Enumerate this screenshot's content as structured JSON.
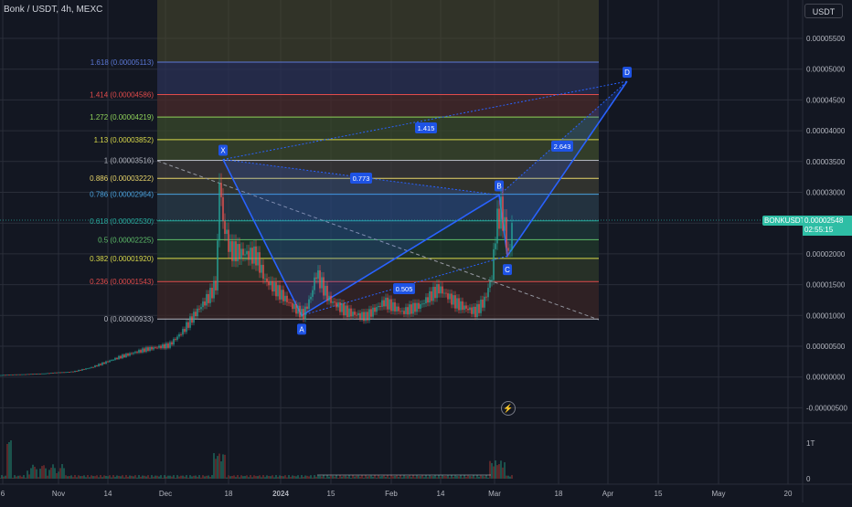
{
  "header": {
    "symbol_title": "Bonk / USDT, 4h, MEXC",
    "currency_button": "USDT"
  },
  "price_tag": {
    "symbol": "BONKUSDT",
    "price": "0.00002548",
    "countdown": "02:55:15"
  },
  "colors": {
    "background": "#131722",
    "up": "#26a69a",
    "down": "#ef5350",
    "pattern": "#2962ff",
    "grid": "#2a2e39"
  },
  "chart_data": {
    "type": "candlestick",
    "y_axis_ticks": [
      "0.00005500",
      "0.00005000",
      "0.00004500",
      "0.00004000",
      "0.00003500",
      "0.00003000",
      "0.00002500",
      "0.00002000",
      "0.00001500",
      "0.00001000",
      "0.00000500",
      "0.00000000",
      "-0.00000500"
    ],
    "volume_axis_ticks": [
      "1T",
      "0"
    ],
    "x_axis_ticks": [
      "6",
      "Nov",
      "14",
      "Dec",
      "18",
      "2024",
      "15",
      "Feb",
      "14",
      "Mar",
      "18",
      "Apr",
      "15",
      "May",
      "20"
    ],
    "price_series": [
      {
        "t": 0,
        "p": 2e-07
      },
      {
        "t": 40,
        "p": 4e-07
      },
      {
        "t": 80,
        "p": 8e-07
      },
      {
        "t": 100,
        "p": 1.5e-06
      },
      {
        "t": 130,
        "p": 3e-06
      },
      {
        "t": 160,
        "p": 4.2e-06
      },
      {
        "t": 185,
        "p": 5e-06
      },
      {
        "t": 200,
        "p": 7.5e-06
      },
      {
        "t": 215,
        "p": 1.1e-05
      },
      {
        "t": 230,
        "p": 1.4e-05
      },
      {
        "t": 237,
        "p": 1.6e-05
      },
      {
        "t": 240,
        "p": 3.4e-05
      },
      {
        "t": 244,
        "p": 2.6e-05
      },
      {
        "t": 252,
        "p": 2.1e-05
      },
      {
        "t": 265,
        "p": 2e-05
      },
      {
        "t": 280,
        "p": 1.9e-05
      },
      {
        "t": 290,
        "p": 1.5e-05
      },
      {
        "t": 305,
        "p": 1.3e-05
      },
      {
        "t": 320,
        "p": 1.1e-05
      },
      {
        "t": 332,
        "p": 9.8e-06
      },
      {
        "t": 340,
        "p": 1.3e-05
      },
      {
        "t": 346,
        "p": 1.7e-05
      },
      {
        "t": 360,
        "p": 1.3e-05
      },
      {
        "t": 380,
        "p": 1.1e-05
      },
      {
        "t": 400,
        "p": 1e-05
      },
      {
        "t": 420,
        "p": 1.2e-05
      },
      {
        "t": 440,
        "p": 1e-05
      },
      {
        "t": 460,
        "p": 1.1e-05
      },
      {
        "t": 480,
        "p": 1.4e-05
      },
      {
        "t": 500,
        "p": 1.2e-05
      },
      {
        "t": 520,
        "p": 1.1e-05
      },
      {
        "t": 530,
        "p": 1.3e-05
      },
      {
        "t": 538,
        "p": 1.7e-05
      },
      {
        "t": 543,
        "p": 2.6e-05
      },
      {
        "t": 548,
        "p": 2.8e-05
      },
      {
        "t": 552,
        "p": 2.5e-05
      },
      {
        "t": 557,
        "p": 1.9e-05
      },
      {
        "t": 560,
        "p": 2.55e-05
      }
    ],
    "fib_levels": [
      {
        "ratio": "1.618",
        "price": "0.00005113",
        "value": 5.113e-05,
        "color": "#5b78d6",
        "fill": "#2b3256"
      },
      {
        "ratio": "1.414",
        "price": "0.00004586",
        "value": 4.586e-05,
        "color": "#e04b4b",
        "fill": "#4a2b2b"
      },
      {
        "ratio": "1.272",
        "price": "0.00004219",
        "value": 4.219e-05,
        "color": "#8fd25a",
        "fill": "#3a4a2b"
      },
      {
        "ratio": "1.13",
        "price": "0.00003852",
        "value": 3.852e-05,
        "color": "#d8d84a",
        "fill": "#3d4b2c"
      },
      {
        "ratio": "1",
        "price": "0.00003516",
        "value": 3.516e-05,
        "color": "#b2b5be",
        "fill": "#3e3b3a"
      },
      {
        "ratio": "0.886",
        "price": "0.00003222",
        "value": 3.222e-05,
        "color": "#e8d56a",
        "fill": "#3b3c33"
      },
      {
        "ratio": "0.786",
        "price": "0.00002964",
        "value": 2.964e-05,
        "color": "#4aa3df",
        "fill": "#2a3c4a"
      },
      {
        "ratio": "0.618",
        "price": "0.00002530",
        "value": 2.53e-05,
        "color": "#26a69a",
        "fill": "#1f3a3a"
      },
      {
        "ratio": "0.5",
        "price": "0.00002225",
        "value": 2.225e-05,
        "color": "#5fbf6a",
        "fill": "#22392b"
      },
      {
        "ratio": "0.382",
        "price": "0.00001920",
        "value": 1.92e-05,
        "color": "#d9d94a",
        "fill": "#2f3a2a"
      },
      {
        "ratio": "0.236",
        "price": "0.00001543",
        "value": 1.543e-05,
        "color": "#e04b4b",
        "fill": "#3a2626"
      },
      {
        "ratio": "0",
        "price": "0.00000933",
        "value": 9.33e-06,
        "color": "#b2b5be",
        "fill": ""
      }
    ],
    "fib_labels": [
      "1.618 (0.00005113)",
      "1.414 (0.00004586)",
      "1.272 (0.00004219)",
      "1.13 (0.00003852)",
      "1 (0.00003516)",
      "0.886 (0.00003222)",
      "0.786 (0.00002964)",
      "0.618 (0.00002530)",
      "0.5 (0.00002225)",
      "0.382 (0.00001920)",
      "0.236 (0.00001543)",
      "0 (0.00000933)"
    ],
    "pattern_points": [
      {
        "label": "X",
        "price": 3.53e-05
      },
      {
        "label": "A",
        "price": 9.9e-06
      },
      {
        "label": "B",
        "price": 2.95e-05
      },
      {
        "label": "C",
        "price": 1.96e-05
      },
      {
        "label": "D",
        "price": 4.8e-05
      }
    ],
    "pattern_ratios": [
      "0.773",
      "0.505",
      "2.643",
      "1.415"
    ]
  }
}
